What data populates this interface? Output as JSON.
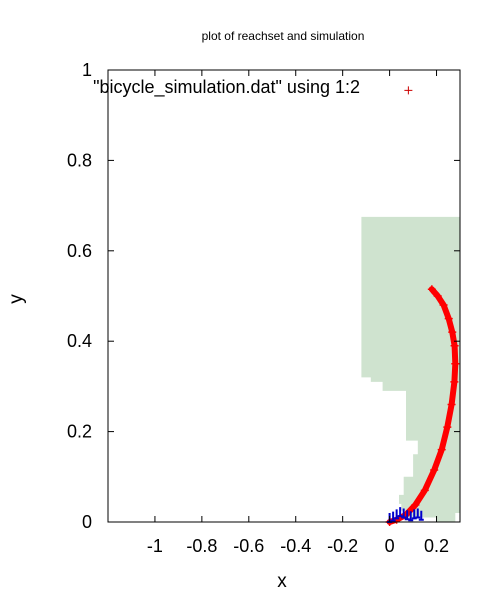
{
  "chart_data": {
    "type": "scatter",
    "title": "plot of reachset and simulation",
    "xlabel": "x",
    "ylabel": "y",
    "xlim": [
      -1.2,
      0.3
    ],
    "ylim": [
      0,
      1
    ],
    "xticks": [
      -1,
      -0.8,
      -0.6,
      -0.4,
      -0.2,
      0,
      0.2
    ],
    "xtick_labels": [
      "-1",
      "-0.8",
      "-0.6",
      "-0.4",
      "-0.2",
      "0",
      "0.2"
    ],
    "yticks": [
      0,
      0.2,
      0.4,
      0.6,
      0.8,
      1
    ],
    "ytick_labels": [
      "0",
      "0.2",
      "0.4",
      "0.6",
      "0.8",
      "1"
    ],
    "legend": {
      "position": "top-left",
      "label": "\"bicycle_simulation.dat\" using 1:2",
      "marker_color": "#cc0000"
    },
    "reachset": {
      "color": "#cfe3cf",
      "outline": [
        [
          -0.12,
          0.675
        ],
        [
          0.31,
          0.675
        ],
        [
          0.31,
          0.02
        ],
        [
          0.28,
          0.02
        ],
        [
          0.28,
          0.0
        ],
        [
          0.2,
          0.0
        ],
        [
          0.2,
          0.01
        ],
        [
          0.08,
          0.01
        ],
        [
          0.08,
          0.025
        ],
        [
          0.05,
          0.025
        ],
        [
          0.05,
          0.04
        ],
        [
          0.04,
          0.04
        ],
        [
          0.04,
          0.06
        ],
        [
          0.06,
          0.06
        ],
        [
          0.06,
          0.1
        ],
        [
          0.1,
          0.1
        ],
        [
          0.1,
          0.15
        ],
        [
          0.12,
          0.15
        ],
        [
          0.12,
          0.18
        ],
        [
          0.07,
          0.18
        ],
        [
          0.07,
          0.29
        ],
        [
          -0.03,
          0.29
        ],
        [
          -0.03,
          0.31
        ],
        [
          -0.08,
          0.31
        ],
        [
          -0.08,
          0.32
        ],
        [
          -0.12,
          0.32
        ]
      ]
    },
    "simulation": {
      "color": "#ff0000",
      "points": [
        [
          0.0,
          0.0
        ],
        [
          0.03,
          0.005
        ],
        [
          0.07,
          0.016
        ],
        [
          0.11,
          0.038
        ],
        [
          0.15,
          0.07
        ],
        [
          0.19,
          0.115
        ],
        [
          0.222,
          0.16
        ],
        [
          0.246,
          0.21
        ],
        [
          0.264,
          0.26
        ],
        [
          0.276,
          0.31
        ],
        [
          0.28,
          0.35
        ],
        [
          0.277,
          0.39
        ],
        [
          0.267,
          0.42
        ],
        [
          0.252,
          0.45
        ],
        [
          0.23,
          0.48
        ],
        [
          0.205,
          0.5
        ],
        [
          0.18,
          0.515
        ]
      ],
      "outlier": [
        0.08,
        0.955
      ]
    },
    "blue_marks": {
      "color": "#0000cc",
      "points": [
        [
          0.0,
          0.0
        ],
        [
          0.015,
          0.003
        ],
        [
          0.03,
          0.008
        ],
        [
          0.045,
          0.013
        ],
        [
          0.06,
          0.01
        ],
        [
          0.075,
          0.006
        ],
        [
          0.09,
          0.004
        ],
        [
          0.105,
          0.008
        ],
        [
          0.12,
          0.01
        ],
        [
          0.135,
          0.005
        ]
      ]
    }
  }
}
